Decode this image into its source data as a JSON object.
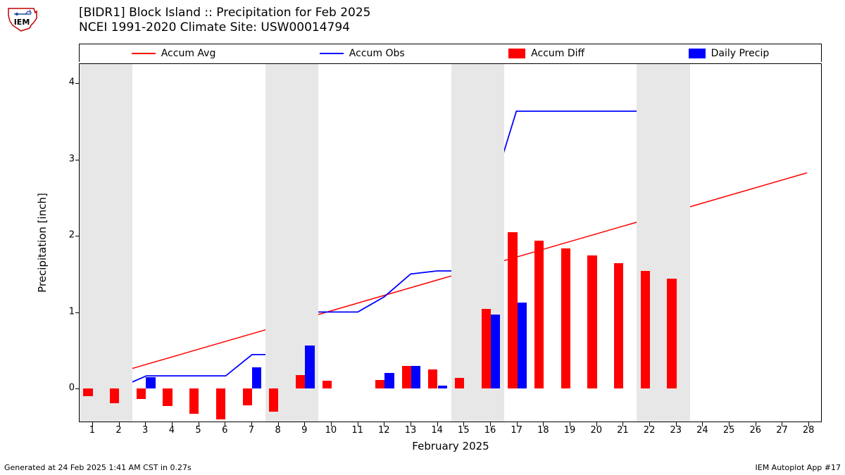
{
  "logo": {
    "text": "IEM",
    "outline_color": "#c00000",
    "detail_color": "#2048a0"
  },
  "title": {
    "line1": "[BIDR1] Block Island :: Precipitation for Feb 2025",
    "line2": "NCEI 1991-2020 Climate Site: USW00014794"
  },
  "legend": {
    "items": [
      {
        "label": "Accum Avg",
        "type": "line",
        "color": "#ff0000"
      },
      {
        "label": "Accum Obs",
        "type": "line",
        "color": "#0000ff"
      },
      {
        "label": "Accum Diff",
        "type": "box",
        "color": "#ff0000"
      },
      {
        "label": "Daily Precip",
        "type": "box",
        "color": "#0000ff"
      }
    ]
  },
  "axes": {
    "ylabel": "Precipitation [inch]",
    "xlabel": "February 2025",
    "ylim": [
      -0.45,
      4.25
    ],
    "yticks": [
      0,
      1,
      2,
      3,
      4
    ],
    "xlim": [
      0.5,
      28.5
    ],
    "xticks": [
      1,
      2,
      3,
      4,
      5,
      6,
      7,
      8,
      9,
      10,
      11,
      12,
      13,
      14,
      15,
      16,
      17,
      18,
      19,
      20,
      21,
      22,
      23,
      24,
      25,
      26,
      27,
      28
    ],
    "tick_fontsize": 13,
    "label_fontsize": 15
  },
  "shaded_ranges": [
    [
      0.5,
      2.5
    ],
    [
      7.5,
      9.5
    ],
    [
      14.5,
      16.5
    ],
    [
      21.5,
      23.5
    ]
  ],
  "series": {
    "accum_avg": {
      "color": "#ff0000",
      "linewidth": 1.5,
      "x": [
        1,
        28
      ],
      "y": [
        0.1,
        2.82
      ]
    },
    "accum_obs": {
      "color": "#0000ff",
      "linewidth": 1.8,
      "x": [
        1,
        2,
        3,
        4,
        5,
        6,
        7,
        8,
        9,
        10,
        11,
        12,
        13,
        14,
        15,
        16,
        17,
        18,
        19,
        20,
        21,
        22,
        23
      ],
      "y": [
        0.0,
        0.0,
        0.15,
        0.15,
        0.15,
        0.15,
        0.43,
        0.43,
        0.99,
        0.99,
        0.99,
        1.19,
        1.49,
        1.53,
        1.53,
        2.5,
        3.63,
        3.63,
        3.63,
        3.63,
        3.63,
        3.63,
        3.63
      ]
    },
    "accum_diff": {
      "color": "#ff0000",
      "bar_width": 0.35,
      "offset": -0.18,
      "x": [
        1,
        2,
        3,
        4,
        5,
        6,
        7,
        8,
        9,
        10,
        11,
        12,
        13,
        14,
        15,
        16,
        17,
        18,
        19,
        20,
        21,
        22,
        23
      ],
      "y": [
        -0.1,
        -0.19,
        -0.14,
        -0.23,
        -0.33,
        -0.4,
        -0.22,
        -0.3,
        0.18,
        0.1,
        0.0,
        0.11,
        0.3,
        0.25,
        0.14,
        1.04,
        2.05,
        1.94,
        1.84,
        1.74,
        1.64,
        1.54,
        1.44
      ]
    },
    "daily_precip": {
      "color": "#0000ff",
      "bar_width": 0.35,
      "offset": 0.18,
      "x": [
        3,
        7,
        9,
        12,
        13,
        14,
        16,
        17
      ],
      "y": [
        0.15,
        0.28,
        0.56,
        0.2,
        0.3,
        0.04,
        0.97,
        1.13
      ]
    }
  },
  "footer": {
    "left": "Generated at 24 Feb 2025 1:41 AM CST in 0.27s",
    "right": "IEM Autoplot App #17"
  },
  "style": {
    "background_color": "#ffffff",
    "shade_color": "#e7e7e7",
    "text_color": "#000000"
  }
}
